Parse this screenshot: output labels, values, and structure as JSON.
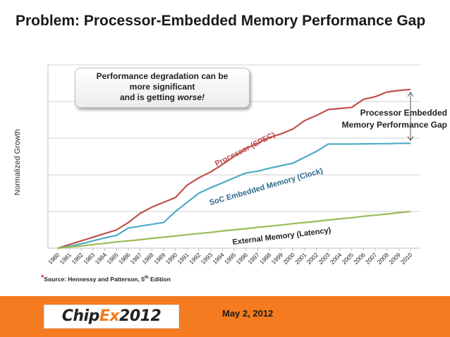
{
  "slide": {
    "title": "Problem: Processor-Embedded Memory Performance Gap",
    "callout_lines": [
      "Performance degradation can be",
      "more significant",
      "and is getting "
    ],
    "callout_emphasis": "worse!",
    "source_mark": "*",
    "source_text": "Source: Hennessy and Patterson, 5",
    "source_sup": "th",
    "source_suffix": " Edition",
    "footer_date": "May 2, 2012",
    "logo_left": "Chip",
    "logo_x": "Ex",
    "logo_right": "2012"
  },
  "chart_data": {
    "type": "line",
    "ylabel": "Normalized Growth",
    "xlabel": "",
    "grid": true,
    "ylim": [
      0,
      5
    ],
    "categories": [
      "1980",
      "1981",
      "1982",
      "1983",
      "1984",
      "1985",
      "1986",
      "1987",
      "1988",
      "1989",
      "1990",
      "1991",
      "1992",
      "1993",
      "1994",
      "1995",
      "1996",
      "1997",
      "1998",
      "1999",
      "2000",
      "2001",
      "2002",
      "2003",
      "2004",
      "2005",
      "2006",
      "2007",
      "2008",
      "2009",
      "2010"
    ],
    "series": [
      {
        "name": "Processor (SPEC)",
        "color": "#c0504d",
        "values": [
          0,
          0.1,
          0.2,
          0.3,
          0.4,
          0.5,
          0.7,
          0.95,
          1.12,
          1.25,
          1.38,
          1.72,
          1.92,
          2.08,
          2.28,
          2.5,
          2.72,
          2.86,
          3.02,
          3.12,
          3.25,
          3.48,
          3.62,
          3.78,
          3.81,
          3.84,
          4.06,
          4.13,
          4.26,
          4.3,
          4.33
        ]
      },
      {
        "name": "SoC Embedded Memory (Clock)",
        "color": "#4bacc6",
        "values": [
          0,
          0.05,
          0.12,
          0.2,
          0.28,
          0.35,
          0.55,
          0.6,
          0.65,
          0.7,
          1.0,
          1.25,
          1.5,
          1.65,
          1.78,
          1.92,
          2.05,
          2.1,
          2.18,
          2.25,
          2.32,
          2.48,
          2.64,
          2.84,
          2.84,
          2.84,
          2.845,
          2.85,
          2.85,
          2.86,
          2.86
        ]
      },
      {
        "name": "External Memory (Latency)",
        "color": "#9bbb59",
        "values": [
          0,
          0.03,
          0.06,
          0.1,
          0.13,
          0.17,
          0.2,
          0.23,
          0.27,
          0.3,
          0.33,
          0.37,
          0.4,
          0.43,
          0.47,
          0.5,
          0.53,
          0.57,
          0.6,
          0.63,
          0.67,
          0.7,
          0.73,
          0.77,
          0.8,
          0.83,
          0.87,
          0.9,
          0.93,
          0.97,
          1.0
        ]
      }
    ],
    "annotation": {
      "text_lines": [
        "Processor Embedded",
        "Memory Performance Gap"
      ],
      "x": "2010",
      "y_from": 4.33,
      "y_to": 2.86
    }
  }
}
